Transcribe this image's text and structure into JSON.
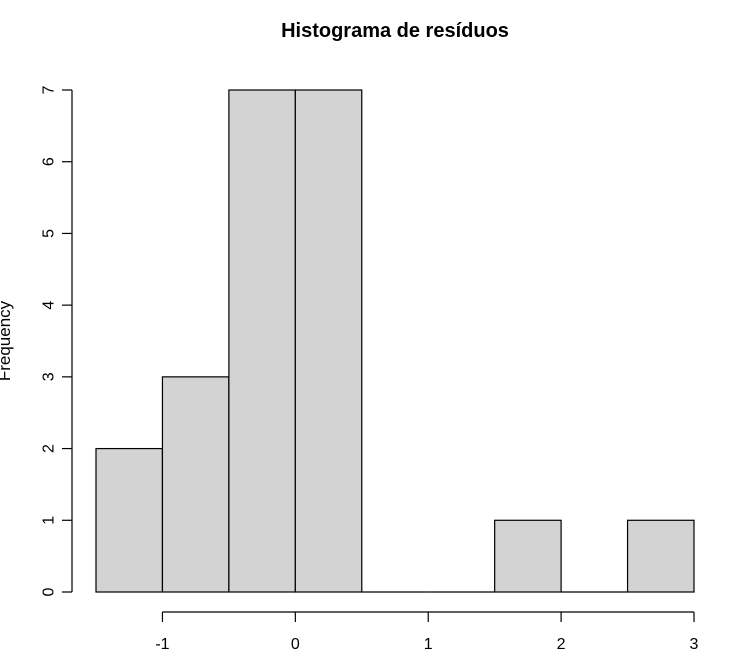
{
  "chart_data": {
    "type": "bar",
    "subtype": "histogram",
    "title": "Histograma de resíduos",
    "xlabel": "",
    "ylabel": "Frequency",
    "bins": [
      {
        "start": -1.5,
        "end": -1.0,
        "count": 2
      },
      {
        "start": -1.0,
        "end": -0.5,
        "count": 3
      },
      {
        "start": -0.5,
        "end": 0.0,
        "count": 7
      },
      {
        "start": 0.0,
        "end": 0.5,
        "count": 7
      },
      {
        "start": 0.5,
        "end": 1.0,
        "count": 0
      },
      {
        "start": 1.0,
        "end": 1.5,
        "count": 0
      },
      {
        "start": 1.5,
        "end": 2.0,
        "count": 1
      },
      {
        "start": 2.0,
        "end": 2.5,
        "count": 0
      },
      {
        "start": 2.5,
        "end": 3.0,
        "count": 1
      }
    ],
    "xlim": [
      -1.5,
      3.0
    ],
    "ylim": [
      0,
      7
    ],
    "x_ticks": [
      "-1",
      "0",
      "1",
      "2",
      "3"
    ],
    "x_tick_values": [
      -1,
      0,
      1,
      2,
      3
    ],
    "y_ticks": [
      "0",
      "1",
      "2",
      "3",
      "4",
      "5",
      "6",
      "7"
    ],
    "y_tick_values": [
      0,
      1,
      2,
      3,
      4,
      5,
      6,
      7
    ],
    "bar_fill": "#d3d3d3",
    "bar_stroke": "#000000",
    "grid": false
  }
}
